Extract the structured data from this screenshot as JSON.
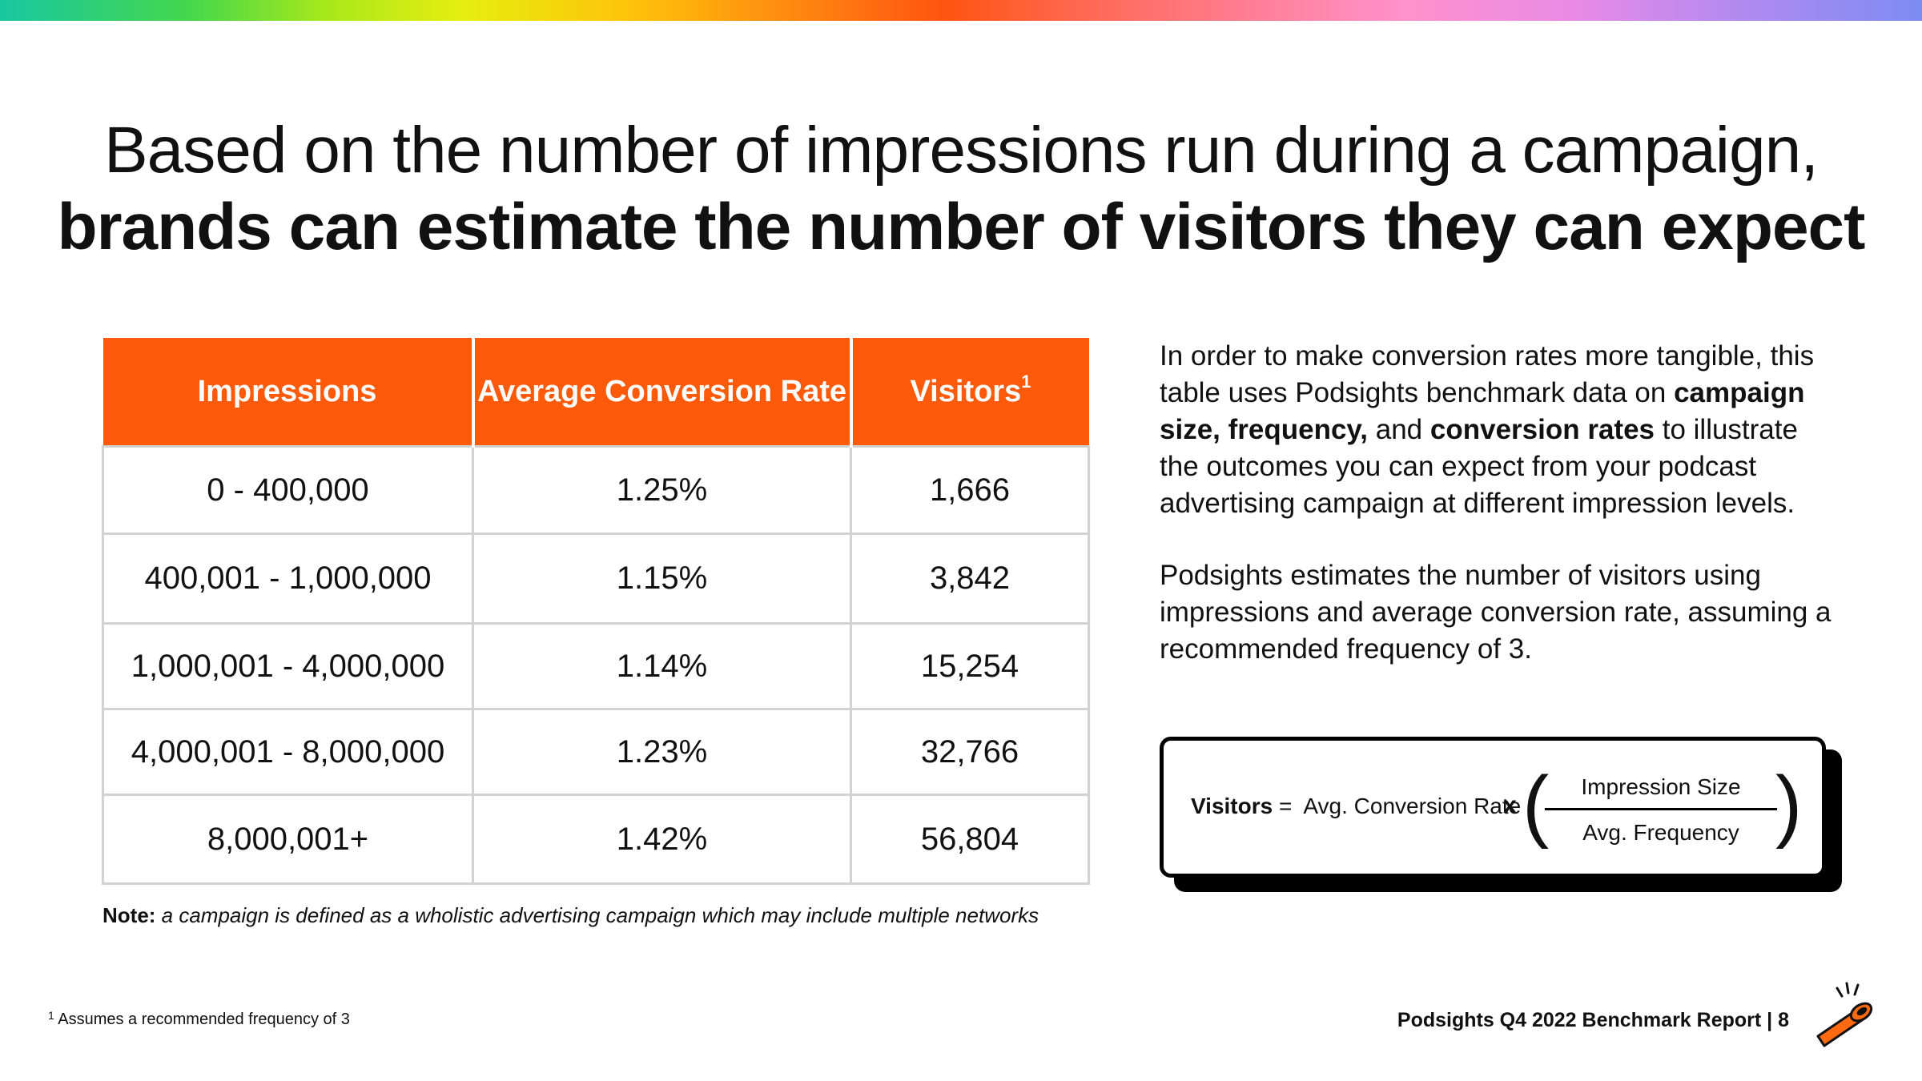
{
  "title": {
    "line1": "Based on the number of impressions run during a campaign,",
    "line2": "brands can estimate the number of visitors they can expect"
  },
  "table": {
    "headers": {
      "impressions": "Impressions",
      "rate": "Average Conversion Rate",
      "visitors": "Visitors",
      "visitors_sup": "1"
    },
    "rows": [
      {
        "impressions": "0 - 400,000",
        "rate": "1.25%",
        "visitors": "1,666"
      },
      {
        "impressions": "400,001 - 1,000,000",
        "rate": "1.15%",
        "visitors": "3,842"
      },
      {
        "impressions": "1,000,001 - 4,000,000",
        "rate": "1.14%",
        "visitors": "15,254"
      },
      {
        "impressions": "4,000,001 - 8,000,000",
        "rate": "1.23%",
        "visitors": "32,766"
      },
      {
        "impressions": "8,000,001+",
        "rate": "1.42%",
        "visitors": "56,804"
      }
    ]
  },
  "note": {
    "label": "Note:",
    "text": " a campaign is defined as a wholistic advertising campaign which may include multiple networks"
  },
  "description": {
    "p1": {
      "t1": "In order to make conversion rates more tangible, this table uses Podsights benchmark data on ",
      "b1": "campaign size, frequency,",
      "t2": " and ",
      "b2": "conversion rates",
      "t3": " to illustrate the outcomes you can expect from your podcast advertising campaign at different impression levels."
    },
    "p2": "Podsights estimates the number of visitors using impressions and average conversion rate, assuming a recommended frequency of 3."
  },
  "formula": {
    "lhs": "Visitors",
    "eq": " =  ",
    "rate": "Avg. Conversion Rate",
    "times": "x",
    "open_paren": "(",
    "close_paren": ")",
    "numerator": "Impression Size",
    "denominator": "Avg. Frequency"
  },
  "footnote": {
    "sup": "1",
    "text": " Assumes a recommended frequency of 3"
  },
  "footer": "Podsights Q4 2022 Benchmark Report | 8",
  "colors": {
    "accent": "#ff5a0a",
    "border": "#d2d2d2",
    "text": "#111111"
  },
  "icons": {
    "logo": "podsights-pipe-logo-icon"
  }
}
